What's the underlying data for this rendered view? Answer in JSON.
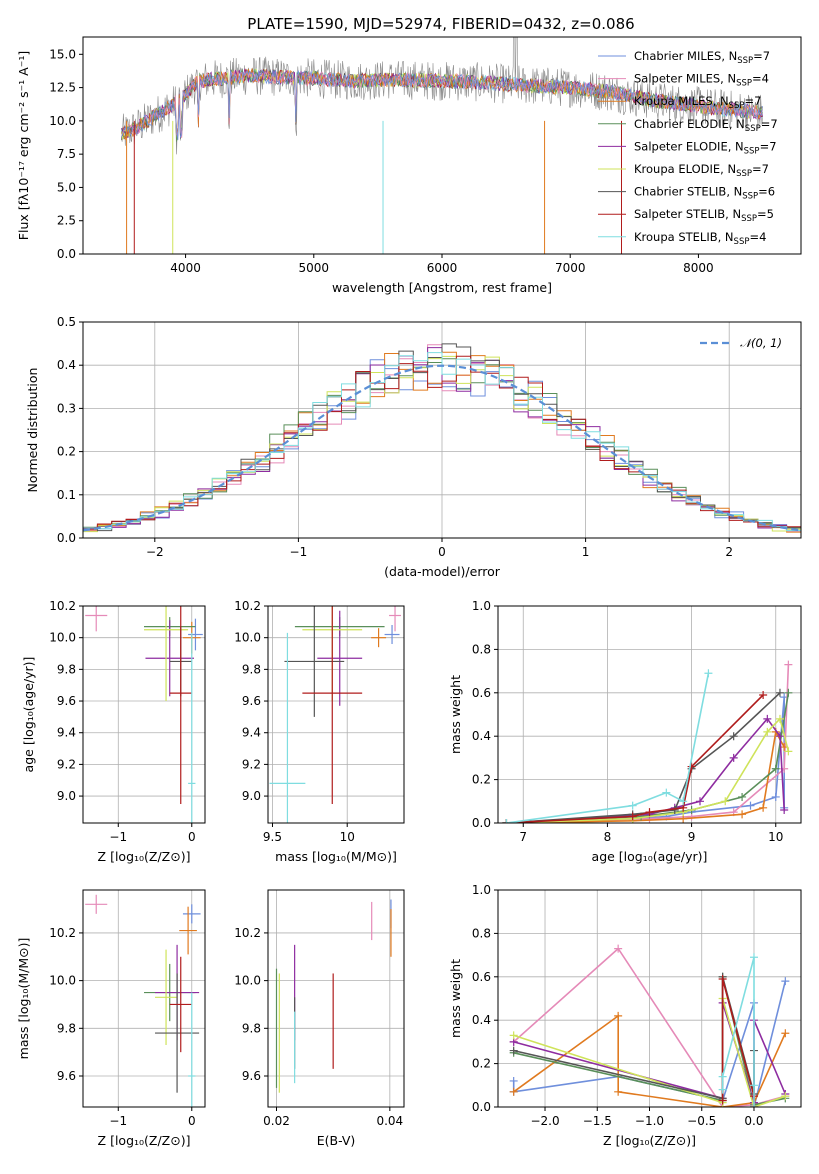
{
  "page": {
    "title": "PLATE=1590, MJD=52974, FIBERID=0432, z=0.086"
  },
  "colors": {
    "chabrier_miles": "#6f8fdc",
    "salpeter_miles": "#e58ab8",
    "kroupa_miles": "#e07a1f",
    "chabrier_elodie": "#5a8f5a",
    "salpeter_elodie": "#8e2ca0",
    "kroupa_elodie": "#cfe35a",
    "chabrier_stelib": "#555555",
    "salpeter_stelib": "#b01c1c",
    "kroupa_stelib": "#7fdde0",
    "data_spectrum": "#888888",
    "gaussian": "#5a8fd6"
  },
  "chart_data": [
    {
      "id": "spectrum",
      "type": "line",
      "title": "PLATE=1590, MJD=52974, FIBERID=0432, z=0.086",
      "xlabel": "wavelength [Angstrom, rest frame]",
      "ylabel": "Flux [fλ10⁻¹⁷ erg cm⁻² s⁻¹ A⁻¹]",
      "xlim": [
        3200,
        8800
      ],
      "ylim": [
        0,
        16.3
      ],
      "xticks": [
        4000,
        5000,
        6000,
        7000,
        8000
      ],
      "yticks": [
        0.0,
        2.5,
        5.0,
        7.5,
        10.0,
        12.5,
        15.0
      ],
      "legend_position": "top-right",
      "legend": [
        "Chabrier MILES, N_SSP=7",
        "Salpeter MILES, N_SSP=4",
        "Kroupa MILES, N_SSP=7",
        "Chabrier ELODIE, N_SSP=7",
        "Salpeter ELODIE, N_SSP=7",
        "Kroupa ELODIE, N_SSP=7",
        "Chabrier STELIB, N_SSP=6",
        "Salpeter STELIB, N_SSP=5",
        "Kroupa STELIB, N_SSP=4"
      ],
      "continuum": {
        "x": [
          3500,
          3600,
          3700,
          3800,
          3900,
          4000,
          4100,
          4300,
          4500,
          4700,
          5000,
          5300,
          5600,
          6000,
          6300,
          6600,
          7000,
          7300,
          7600,
          8000,
          8300,
          8500
        ],
        "y": [
          9.0,
          9.4,
          10.0,
          10.6,
          11.2,
          12.0,
          13.0,
          13.2,
          13.4,
          13.3,
          13.2,
          13.0,
          13.1,
          13.0,
          12.9,
          12.7,
          12.5,
          12.2,
          11.6,
          11.1,
          10.8,
          10.6
        ]
      }
    },
    {
      "id": "residuals",
      "type": "histogram",
      "xlabel": "(data-model)/error",
      "ylabel": "Normed distribution",
      "xlim": [
        -2.5,
        2.5
      ],
      "ylim": [
        0,
        0.5
      ],
      "xticks": [
        -2,
        -1,
        0,
        1,
        2
      ],
      "yticks": [
        0.0,
        0.1,
        0.2,
        0.3,
        0.4,
        0.5
      ],
      "legend_position": "top-right",
      "legend": [
        "𝒩(0, 1)"
      ],
      "bin_width": 0.1
    },
    {
      "id": "age_vs_Z",
      "type": "errorbar",
      "xlabel": "Z [log₁₀(Z/Z⊙)]",
      "ylabel": "age  [log₁₀(age/yr)]",
      "xlim": [
        -1.48,
        0.18
      ],
      "ylim": [
        8.83,
        10.2
      ],
      "xticks": [
        -1,
        0
      ],
      "yticks": [
        9.0,
        9.2,
        9.4,
        9.6,
        9.8,
        10.0,
        10.2
      ],
      "points": [
        {
          "model": "chabrier_miles",
          "x": 0.05,
          "y": 10.02,
          "xerr": 0.1,
          "yerr": 0.1
        },
        {
          "model": "salpeter_miles",
          "x": -1.3,
          "y": 10.14,
          "xerr": 0.15,
          "yerr": 0.1
        },
        {
          "model": "kroupa_miles",
          "x": 0.0,
          "y": 10.0,
          "xerr": 0.12,
          "yerr": 0.1
        },
        {
          "model": "chabrier_elodie",
          "x": -0.3,
          "y": 10.07,
          "xerr": 0.35,
          "yerr": 0.06
        },
        {
          "model": "salpeter_elodie",
          "x": -0.3,
          "y": 9.87,
          "xerr": 0.33,
          "yerr": 0.24
        },
        {
          "model": "kroupa_elodie",
          "x": -0.35,
          "y": 10.05,
          "xerr": 0.3,
          "yerr": 0.45
        },
        {
          "model": "chabrier_stelib",
          "x": -0.15,
          "y": 9.85,
          "xerr": 0.15,
          "yerr": 0.22
        },
        {
          "model": "salpeter_stelib",
          "x": -0.15,
          "y": 9.65,
          "xerr": 0.15,
          "yerr": 0.7
        },
        {
          "model": "kroupa_stelib",
          "x": 0.0,
          "y": 9.08,
          "xerr": 0.05,
          "yerr": 0.95
        }
      ]
    },
    {
      "id": "age_vs_mass",
      "type": "errorbar",
      "xlabel": "mass [log₁₀(M/M⊙)]",
      "ylabel": "",
      "xlim": [
        9.47,
        10.38
      ],
      "ylim": [
        8.83,
        10.2
      ],
      "xticks": [
        9.5,
        10.0
      ],
      "yticks": [
        9.0,
        9.2,
        9.4,
        9.6,
        9.8,
        10.0,
        10.2
      ],
      "points": [
        {
          "model": "chabrier_miles",
          "x": 10.3,
          "y": 10.02,
          "xerr": 0.05,
          "yerr": 0.06
        },
        {
          "model": "salpeter_miles",
          "x": 10.32,
          "y": 10.14,
          "xerr": 0.04,
          "yerr": 0.1
        },
        {
          "model": "kroupa_miles",
          "x": 10.21,
          "y": 10.0,
          "xerr": 0.05,
          "yerr": 0.06
        },
        {
          "model": "chabrier_elodie",
          "x": 9.95,
          "y": 10.07,
          "xerr": 0.3,
          "yerr": 0.06
        },
        {
          "model": "salpeter_elodie",
          "x": 9.95,
          "y": 9.87,
          "xerr": 0.15,
          "yerr": 0.3
        },
        {
          "model": "kroupa_elodie",
          "x": 9.9,
          "y": 10.05,
          "xerr": 0.2,
          "yerr": 0.45
        },
        {
          "model": "chabrier_stelib",
          "x": 9.78,
          "y": 9.85,
          "xerr": 0.2,
          "yerr": 0.35
        },
        {
          "model": "salpeter_stelib",
          "x": 9.9,
          "y": 9.65,
          "xerr": 0.2,
          "yerr": 0.7
        },
        {
          "model": "kroupa_stelib",
          "x": 9.6,
          "y": 9.08,
          "xerr": 0.12,
          "yerr": 0.95
        }
      ]
    },
    {
      "id": "weight_vs_age",
      "type": "line",
      "xlabel": "age  [log₁₀(age/yr)]",
      "ylabel": "mass weight",
      "xlim": [
        6.7,
        10.3
      ],
      "ylim": [
        0,
        1.0
      ],
      "xticks": [
        7,
        8,
        9,
        10
      ],
      "yticks": [
        0.0,
        0.2,
        0.4,
        0.6,
        0.8,
        1.0
      ],
      "series": [
        {
          "model": "chabrier_miles",
          "x": [
            6.8,
            8.3,
            8.7,
            9.0,
            9.7,
            10.0,
            10.1,
            10.1
          ],
          "y": [
            0.0,
            0.02,
            0.03,
            0.05,
            0.08,
            0.12,
            0.58,
            0.07
          ]
        },
        {
          "model": "salpeter_miles",
          "x": [
            6.8,
            8.5,
            9.0,
            9.5,
            10.1,
            10.15
          ],
          "y": [
            0.0,
            0.02,
            0.03,
            0.05,
            0.25,
            0.73
          ]
        },
        {
          "model": "kroupa_miles",
          "x": [
            6.8,
            8.3,
            8.9,
            9.6,
            9.85,
            10.0,
            10.1
          ],
          "y": [
            0.0,
            0.01,
            0.02,
            0.04,
            0.07,
            0.42,
            0.35
          ]
        },
        {
          "model": "chabrier_elodie",
          "x": [
            6.8,
            8.4,
            9.0,
            9.6,
            10.0,
            10.15
          ],
          "y": [
            0.0,
            0.03,
            0.06,
            0.12,
            0.25,
            0.6
          ]
        },
        {
          "model": "salpeter_elodie",
          "x": [
            6.8,
            8.5,
            8.8,
            9.1,
            9.5,
            9.9,
            10.05,
            10.1
          ],
          "y": [
            0.0,
            0.04,
            0.07,
            0.1,
            0.3,
            0.48,
            0.4,
            0.06
          ]
        },
        {
          "model": "kroupa_elodie",
          "x": [
            6.8,
            8.3,
            8.9,
            9.4,
            9.9,
            10.05,
            10.15
          ],
          "y": [
            0.0,
            0.02,
            0.05,
            0.1,
            0.42,
            0.48,
            0.33
          ]
        },
        {
          "model": "chabrier_stelib",
          "x": [
            6.8,
            8.3,
            8.8,
            9.0,
            9.5,
            10.05
          ],
          "y": [
            0.0,
            0.04,
            0.06,
            0.25,
            0.4,
            0.6
          ]
        },
        {
          "model": "salpeter_stelib",
          "x": [
            6.8,
            8.3,
            8.5,
            8.9,
            9.0,
            9.85
          ],
          "y": [
            0.0,
            0.03,
            0.05,
            0.07,
            0.26,
            0.59
          ]
        },
        {
          "model": "kroupa_stelib",
          "x": [
            6.8,
            8.3,
            8.7,
            8.9,
            9.2
          ],
          "y": [
            0.0,
            0.08,
            0.14,
            0.1,
            0.69
          ]
        }
      ]
    },
    {
      "id": "mass_vs_Z",
      "type": "errorbar",
      "xlabel": "Z [log₁₀(Z/Z⊙)]",
      "ylabel": "mass [log₁₀(M/M⊙)]",
      "xlim": [
        -1.48,
        0.18
      ],
      "ylim": [
        9.47,
        10.38
      ],
      "xticks": [
        -1,
        0
      ],
      "yticks": [
        9.6,
        9.8,
        10.0,
        10.2
      ],
      "points": [
        {
          "model": "chabrier_miles",
          "x": 0.0,
          "y": 10.28,
          "xerr": 0.12,
          "yerr": 0.04
        },
        {
          "model": "salpeter_miles",
          "x": -1.3,
          "y": 10.32,
          "xerr": 0.15,
          "yerr": 0.04
        },
        {
          "model": "kroupa_miles",
          "x": -0.05,
          "y": 10.21,
          "xerr": 0.12,
          "yerr": 0.1
        },
        {
          "model": "chabrier_elodie",
          "x": -0.3,
          "y": 9.95,
          "xerr": 0.35,
          "yerr": 0.12
        },
        {
          "model": "salpeter_elodie",
          "x": -0.2,
          "y": 9.95,
          "xerr": 0.3,
          "yerr": 0.2
        },
        {
          "model": "kroupa_elodie",
          "x": -0.35,
          "y": 9.93,
          "xerr": 0.15,
          "yerr": 0.2
        },
        {
          "model": "chabrier_stelib",
          "x": -0.2,
          "y": 9.78,
          "xerr": 0.3,
          "yerr": 0.25
        },
        {
          "model": "salpeter_stelib",
          "x": -0.15,
          "y": 9.9,
          "xerr": 0.15,
          "yerr": 0.2
        },
        {
          "model": "kroupa_stelib",
          "x": 0.0,
          "y": 9.6,
          "xerr": 0.05,
          "yerr": 0.35
        }
      ]
    },
    {
      "id": "mass_vs_ebv",
      "type": "errorbar",
      "xlabel": "E(B-V)",
      "ylabel": "",
      "xlim": [
        0.0185,
        0.0425
      ],
      "ylim": [
        9.47,
        10.38
      ],
      "xticks": [
        0.02,
        0.04
      ],
      "yticks": [
        9.6,
        9.8,
        10.0,
        10.2
      ],
      "points": [
        {
          "model": "chabrier_miles",
          "x": 0.0402,
          "y": 10.28,
          "xerr": 0,
          "yerr": 0.06
        },
        {
          "model": "salpeter_miles",
          "x": 0.0368,
          "y": 10.25,
          "xerr": 0,
          "yerr": 0.08
        },
        {
          "model": "kroupa_miles",
          "x": 0.0402,
          "y": 10.2,
          "xerr": 0,
          "yerr": 0.1
        },
        {
          "model": "chabrier_elodie",
          "x": 0.02,
          "y": 9.8,
          "xerr": 0,
          "yerr": 0.25
        },
        {
          "model": "salpeter_elodie",
          "x": 0.0232,
          "y": 9.95,
          "xerr": 0,
          "yerr": 0.2
        },
        {
          "model": "kroupa_elodie",
          "x": 0.0205,
          "y": 9.78,
          "xerr": 0,
          "yerr": 0.25
        },
        {
          "model": "chabrier_stelib",
          "x": 0.0232,
          "y": 9.78,
          "xerr": 0,
          "yerr": 0.15
        },
        {
          "model": "salpeter_stelib",
          "x": 0.03,
          "y": 9.83,
          "xerr": 0,
          "yerr": 0.2
        },
        {
          "model": "kroupa_stelib",
          "x": 0.0232,
          "y": 9.72,
          "xerr": 0,
          "yerr": 0.15
        }
      ]
    },
    {
      "id": "weight_vs_Z",
      "type": "line",
      "xlabel": "Z [log₁₀(Z/Z⊙)]",
      "ylabel": "mass weight",
      "xlim": [
        -2.45,
        0.45
      ],
      "ylim": [
        0,
        1.0
      ],
      "xticks": [
        -2.0,
        -1.5,
        -1.0,
        -0.5,
        0.0
      ],
      "yticks": [
        0.0,
        0.2,
        0.4,
        0.6,
        0.8,
        1.0
      ],
      "series": [
        {
          "model": "chabrier_miles",
          "x": [
            -2.3,
            -2.3,
            -1.3,
            -0.3,
            0.0,
            0.0,
            0.3
          ],
          "y": [
            0.12,
            0.07,
            0.14,
            0.03,
            0.48,
            0.0,
            0.58
          ]
        },
        {
          "model": "salpeter_miles",
          "x": [
            -2.3,
            -1.3,
            -0.3,
            0.0,
            0.3
          ],
          "y": [
            0.3,
            0.73,
            0.0,
            0.01,
            0.05
          ]
        },
        {
          "model": "kroupa_miles",
          "x": [
            -2.3,
            -1.3,
            -1.3,
            -0.3,
            0.0,
            0.3
          ],
          "y": [
            0.07,
            0.42,
            0.07,
            0.0,
            0.02,
            0.34
          ]
        },
        {
          "model": "chabrier_elodie",
          "x": [
            -2.3,
            -0.3,
            -0.3,
            0.0,
            0.3
          ],
          "y": [
            0.25,
            0.03,
            0.6,
            0.01,
            0.04
          ]
        },
        {
          "model": "salpeter_elodie",
          "x": [
            -2.3,
            -0.3,
            -0.3,
            0.0,
            0.0,
            0.3
          ],
          "y": [
            0.3,
            0.04,
            0.48,
            0.02,
            0.4,
            0.06
          ]
        },
        {
          "model": "kroupa_elodie",
          "x": [
            -2.3,
            -0.3,
            -0.3,
            0.0,
            0.3
          ],
          "y": [
            0.33,
            0.02,
            0.5,
            0.0,
            0.05
          ]
        },
        {
          "model": "chabrier_stelib",
          "x": [
            -2.3,
            -0.3,
            -0.3,
            0.0,
            0.0
          ],
          "y": [
            0.26,
            0.04,
            0.6,
            0.06,
            0.26
          ]
        },
        {
          "model": "salpeter_stelib",
          "x": [
            -0.3,
            -0.3,
            0.0,
            0.0
          ],
          "y": [
            0.03,
            0.59,
            0.05,
            0.0
          ]
        },
        {
          "model": "kroupa_stelib",
          "x": [
            -0.3,
            -0.3,
            0.0,
            0.0,
            0.0
          ],
          "y": [
            0.08,
            0.14,
            0.69,
            0.1,
            0.0
          ]
        }
      ]
    }
  ]
}
